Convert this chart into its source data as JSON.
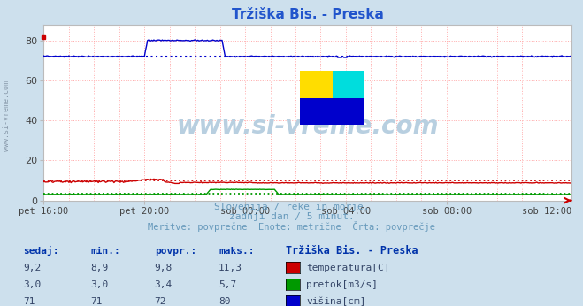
{
  "title": "Tržiška Bis. - Preska",
  "bg_color": "#cde0ed",
  "plot_bg_color": "#ffffff",
  "grid_color": "#ffaaaa",
  "grid_style": ":",
  "x_tick_labels": [
    "pet 16:00",
    "pet 20:00",
    "sob 00:00",
    "sob 04:00",
    "sob 08:00",
    "sob 12:00"
  ],
  "x_tick_positions": [
    0,
    96,
    192,
    288,
    384,
    480
  ],
  "total_points": 504,
  "y_min": 0,
  "y_max": 88,
  "y_ticks": [
    0,
    20,
    40,
    60,
    80
  ],
  "subtitle_lines": [
    "Slovenija / reke in morje.",
    "zadnji dan / 5 minut.",
    "Meritve: povprečne  Enote: metrične  Črta: povprečje"
  ],
  "subtitle_color": "#6699bb",
  "title_color": "#2255cc",
  "watermark": "www.si-vreme.com",
  "watermark_color": "#b8cfe0",
  "watermark_alpha": 0.9,
  "temperature_color": "#cc0000",
  "flow_color": "#009900",
  "height_color": "#0000cc",
  "avg_temp": 9.8,
  "avg_flow": 3.4,
  "avg_height": 72,
  "table_header": "Tržiška Bis. - Preska",
  "table_cols": [
    "sedaj:",
    "min.:",
    "povpr.:",
    "maks.:"
  ],
  "table_data": [
    [
      "9,2",
      "8,9",
      "9,8",
      "11,3"
    ],
    [
      "3,0",
      "3,0",
      "3,4",
      "5,7"
    ],
    [
      "71",
      "71",
      "72",
      "80"
    ]
  ],
  "legend_labels": [
    "temperatura[C]",
    "pretok[m3/s]",
    "višina[cm]"
  ],
  "legend_colors": [
    "#cc0000",
    "#009900",
    "#0000cc"
  ],
  "tick_color": "#444444",
  "left_label_color": "#8899aa",
  "n_vertical_grid": 12
}
